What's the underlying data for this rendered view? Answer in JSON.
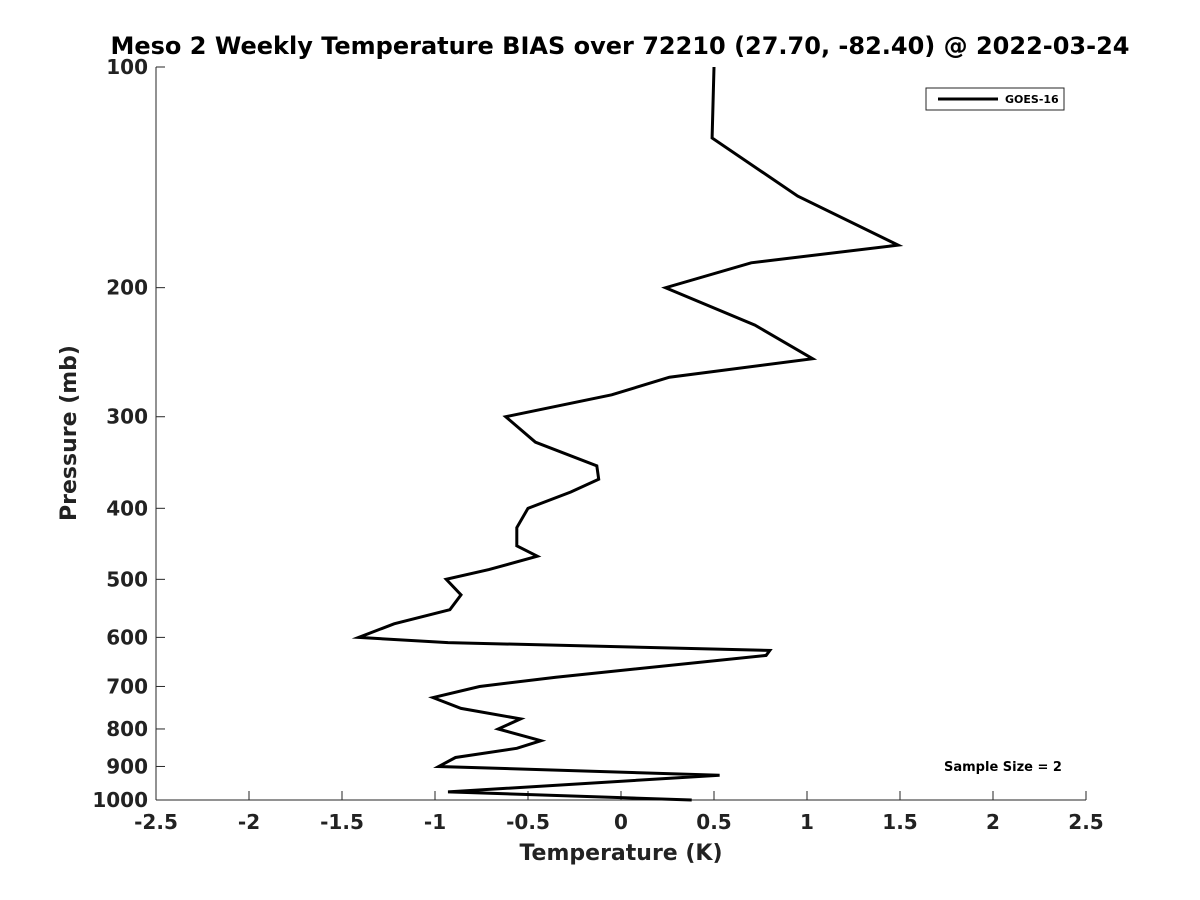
{
  "chart_data": {
    "type": "line",
    "title": "Meso 2 Weekly Temperature BIAS over 72210 (27.70, -82.40) @ 2022-03-24",
    "xlabel": "Temperature (K)",
    "ylabel": "Pressure (mb)",
    "xlim": [
      -2.5,
      2.5
    ],
    "ylim": [
      100,
      1000
    ],
    "y_scale": "log",
    "y_reversed": true,
    "x_ticks": [
      "-2.5",
      "-2",
      "-1.5",
      "-1",
      "-0.5",
      "0",
      "0.5",
      "1",
      "1.5",
      "2",
      "2.5"
    ],
    "y_ticks": [
      "100",
      "200",
      "300",
      "400",
      "500",
      "600",
      "700",
      "800",
      "900",
      "1000"
    ],
    "grid": false,
    "legend_position": "top-right",
    "annotation": "Sample Size = 2",
    "series": [
      {
        "name": "GOES-16",
        "color": "#000000",
        "points": [
          {
            "t": 0.5,
            "p": 100
          },
          {
            "t": 0.49,
            "p": 125
          },
          {
            "t": 0.95,
            "p": 150
          },
          {
            "t": 1.49,
            "p": 175
          },
          {
            "t": 0.7,
            "p": 185
          },
          {
            "t": 0.24,
            "p": 200
          },
          {
            "t": 0.72,
            "p": 225
          },
          {
            "t": 1.03,
            "p": 250
          },
          {
            "t": 0.26,
            "p": 265
          },
          {
            "t": -0.05,
            "p": 280
          },
          {
            "t": -0.62,
            "p": 300
          },
          {
            "t": -0.46,
            "p": 325
          },
          {
            "t": -0.13,
            "p": 350
          },
          {
            "t": -0.12,
            "p": 365
          },
          {
            "t": -0.27,
            "p": 380
          },
          {
            "t": -0.5,
            "p": 400
          },
          {
            "t": -0.56,
            "p": 425
          },
          {
            "t": -0.56,
            "p": 450
          },
          {
            "t": -0.45,
            "p": 465
          },
          {
            "t": -0.71,
            "p": 485
          },
          {
            "t": -0.94,
            "p": 500
          },
          {
            "t": -0.86,
            "p": 525
          },
          {
            "t": -0.92,
            "p": 550
          },
          {
            "t": -1.22,
            "p": 575
          },
          {
            "t": -1.41,
            "p": 600
          },
          {
            "t": -0.93,
            "p": 610
          },
          {
            "t": 0.8,
            "p": 625
          },
          {
            "t": 0.78,
            "p": 635
          },
          {
            "t": -0.35,
            "p": 680
          },
          {
            "t": -0.76,
            "p": 700
          },
          {
            "t": -1.01,
            "p": 725
          },
          {
            "t": -0.86,
            "p": 750
          },
          {
            "t": -0.54,
            "p": 775
          },
          {
            "t": -0.66,
            "p": 800
          },
          {
            "t": -0.43,
            "p": 830
          },
          {
            "t": -0.56,
            "p": 850
          },
          {
            "t": -0.89,
            "p": 875
          },
          {
            "t": -0.98,
            "p": 900
          },
          {
            "t": 0.53,
            "p": 925
          },
          {
            "t": -0.93,
            "p": 975
          },
          {
            "t": 0.38,
            "p": 1000
          }
        ]
      }
    ]
  }
}
